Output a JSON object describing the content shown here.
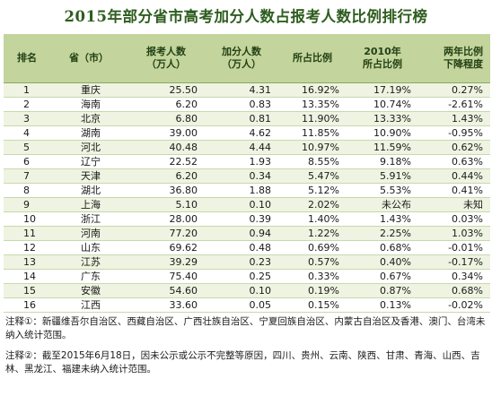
{
  "title": "2015年部分省市高考加分人数占报考人数比例排行榜",
  "headers": {
    "rank": "排名",
    "province": "省（市）",
    "applicants_l1": "报考人数",
    "applicants_l2": "（万人）",
    "bonus_l1": "加分人数",
    "bonus_l2": "（万人）",
    "ratio": "所占比例",
    "ratio2010_l1": "2010年",
    "ratio2010_l2": "所占比例",
    "change_l1": "两年比例",
    "change_l2": "下降程度"
  },
  "rows": [
    {
      "rank": "1",
      "province": "重庆",
      "applicants": "25.50",
      "bonus": "4.31",
      "ratio": "16.92%",
      "ratio2010": "17.19%",
      "change": "0.27%"
    },
    {
      "rank": "2",
      "province": "海南",
      "applicants": "6.20",
      "bonus": "0.83",
      "ratio": "13.35%",
      "ratio2010": "10.74%",
      "change": "-2.61%"
    },
    {
      "rank": "3",
      "province": "北京",
      "applicants": "6.80",
      "bonus": "0.81",
      "ratio": "11.90%",
      "ratio2010": "13.33%",
      "change": "1.43%"
    },
    {
      "rank": "4",
      "province": "湖南",
      "applicants": "39.00",
      "bonus": "4.62",
      "ratio": "11.85%",
      "ratio2010": "10.90%",
      "change": "-0.95%"
    },
    {
      "rank": "5",
      "province": "河北",
      "applicants": "40.48",
      "bonus": "4.44",
      "ratio": "10.97%",
      "ratio2010": "11.59%",
      "change": "0.62%"
    },
    {
      "rank": "6",
      "province": "辽宁",
      "applicants": "22.52",
      "bonus": "1.93",
      "ratio": "8.55%",
      "ratio2010": "9.18%",
      "change": "0.63%"
    },
    {
      "rank": "7",
      "province": "天津",
      "applicants": "6.20",
      "bonus": "0.34",
      "ratio": "5.47%",
      "ratio2010": "5.91%",
      "change": "0.44%"
    },
    {
      "rank": "8",
      "province": "湖北",
      "applicants": "36.80",
      "bonus": "1.88",
      "ratio": "5.12%",
      "ratio2010": "5.53%",
      "change": "0.41%"
    },
    {
      "rank": "9",
      "province": "上海",
      "applicants": "5.10",
      "bonus": "0.10",
      "ratio": "2.02%",
      "ratio2010": "未公布",
      "change": "未知"
    },
    {
      "rank": "10",
      "province": "浙江",
      "applicants": "28.00",
      "bonus": "0.39",
      "ratio": "1.40%",
      "ratio2010": "1.43%",
      "change": "0.03%"
    },
    {
      "rank": "11",
      "province": "河南",
      "applicants": "77.20",
      "bonus": "0.94",
      "ratio": "1.22%",
      "ratio2010": "2.25%",
      "change": "1.03%"
    },
    {
      "rank": "12",
      "province": "山东",
      "applicants": "69.62",
      "bonus": "0.48",
      "ratio": "0.69%",
      "ratio2010": "0.68%",
      "change": "-0.01%"
    },
    {
      "rank": "13",
      "province": "江苏",
      "applicants": "39.29",
      "bonus": "0.23",
      "ratio": "0.57%",
      "ratio2010": "0.40%",
      "change": "-0.17%"
    },
    {
      "rank": "14",
      "province": "广东",
      "applicants": "75.40",
      "bonus": "0.25",
      "ratio": "0.33%",
      "ratio2010": "0.67%",
      "change": "0.34%"
    },
    {
      "rank": "15",
      "province": "安徽",
      "applicants": "54.60",
      "bonus": "0.10",
      "ratio": "0.19%",
      "ratio2010": "0.87%",
      "change": "0.68%"
    },
    {
      "rank": "16",
      "province": "江西",
      "applicants": "33.60",
      "bonus": "0.05",
      "ratio": "0.15%",
      "ratio2010": "0.13%",
      "change": "-0.02%"
    }
  ],
  "notes": {
    "note1": "注释①：新疆维吾尔自治区、西藏自治区、广西壮族自治区、宁夏回族自治区、内蒙古自治区及香港、澳门、台湾未纳入统计范围。",
    "note2": "注释②：截至2015年6月18日，因未公示或公示不完整等原因，四川、贵州、云南、陕西、甘肃、青海、山西、吉林、黑龙江、福建未纳入统计范围。"
  }
}
